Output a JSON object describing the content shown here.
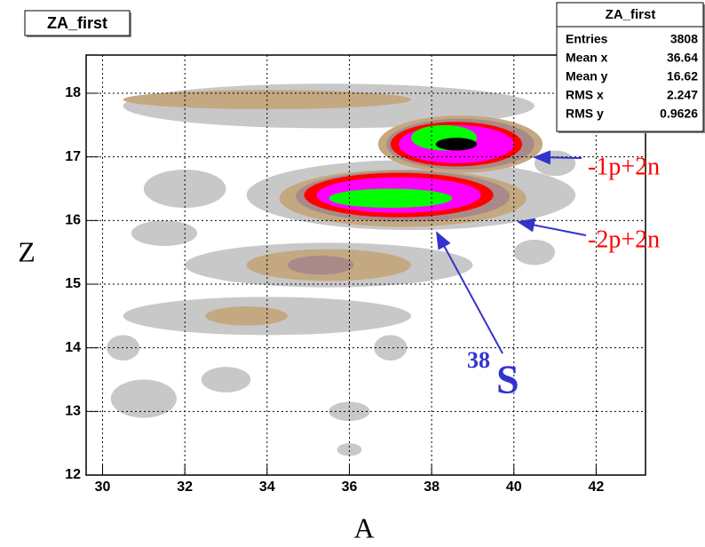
{
  "chart_data": {
    "type": "contour",
    "title": "ZA_first",
    "xlabel": "A",
    "ylabel": "Z",
    "xlim": [
      29.6,
      43.2
    ],
    "ylim": [
      12,
      18.6
    ],
    "xticks": [
      30,
      32,
      34,
      36,
      38,
      40,
      42
    ],
    "yticks": [
      12,
      13,
      14,
      15,
      16,
      17,
      18
    ],
    "grid": true,
    "level_colors": [
      "#c8c8c8",
      "#c4a882",
      "#a88a8a",
      "#ff0000",
      "#ff00ff",
      "#00ff00",
      "#000000"
    ],
    "blobs": [
      {
        "x": 35.5,
        "y": 17.8,
        "rx": 5,
        "ry": 0.35,
        "level": 0
      },
      {
        "x": 34,
        "y": 17.9,
        "rx": 3.5,
        "ry": 0.15,
        "level": 1
      },
      {
        "x": 32,
        "y": 16.5,
        "rx": 1,
        "ry": 0.3,
        "level": 0
      },
      {
        "x": 31.5,
        "y": 15.8,
        "rx": 0.8,
        "ry": 0.2,
        "level": 0
      },
      {
        "x": 35.5,
        "y": 15.3,
        "rx": 3.5,
        "ry": 0.35,
        "level": 0
      },
      {
        "x": 35.5,
        "y": 15.3,
        "rx": 2,
        "ry": 0.25,
        "level": 1
      },
      {
        "x": 35.3,
        "y": 15.3,
        "rx": 0.8,
        "ry": 0.15,
        "level": 2
      },
      {
        "x": 34,
        "y": 14.5,
        "rx": 3.5,
        "ry": 0.3,
        "level": 0
      },
      {
        "x": 33.5,
        "y": 14.5,
        "rx": 1,
        "ry": 0.15,
        "level": 1
      },
      {
        "x": 31,
        "y": 13.2,
        "rx": 0.8,
        "ry": 0.3,
        "level": 0
      },
      {
        "x": 33,
        "y": 13.5,
        "rx": 0.6,
        "ry": 0.2,
        "level": 0
      },
      {
        "x": 30.5,
        "y": 14,
        "rx": 0.4,
        "ry": 0.2,
        "level": 0
      },
      {
        "x": 36,
        "y": 13,
        "rx": 0.5,
        "ry": 0.15,
        "level": 0
      },
      {
        "x": 37,
        "y": 14,
        "rx": 0.4,
        "ry": 0.2,
        "level": 0
      },
      {
        "x": 40.5,
        "y": 15.5,
        "rx": 0.5,
        "ry": 0.2,
        "level": 0
      },
      {
        "x": 41,
        "y": 16.9,
        "rx": 0.5,
        "ry": 0.2,
        "level": 0
      },
      {
        "x": 36,
        "y": 12.4,
        "rx": 0.3,
        "ry": 0.1,
        "level": 0
      },
      {
        "x": 37.5,
        "y": 16.4,
        "rx": 4,
        "ry": 0.55,
        "level": 0
      },
      {
        "x": 37.3,
        "y": 16.35,
        "rx": 3,
        "ry": 0.45,
        "level": 1
      },
      {
        "x": 37.3,
        "y": 16.38,
        "rx": 2.6,
        "ry": 0.4,
        "level": 2
      },
      {
        "x": 37.2,
        "y": 16.4,
        "rx": 2.3,
        "ry": 0.35,
        "level": 3
      },
      {
        "x": 37.2,
        "y": 16.4,
        "rx": 2,
        "ry": 0.28,
        "level": 4
      },
      {
        "x": 37,
        "y": 16.35,
        "rx": 1.5,
        "ry": 0.15,
        "level": 5
      },
      {
        "x": 38.7,
        "y": 17.2,
        "rx": 2,
        "ry": 0.45,
        "level": 1
      },
      {
        "x": 38.7,
        "y": 17.2,
        "rx": 1.8,
        "ry": 0.4,
        "level": 2
      },
      {
        "x": 38.6,
        "y": 17.2,
        "rx": 1.6,
        "ry": 0.35,
        "level": 3
      },
      {
        "x": 38.6,
        "y": 17.2,
        "rx": 1.4,
        "ry": 0.3,
        "level": 4
      },
      {
        "x": 38.3,
        "y": 17.3,
        "rx": 0.8,
        "ry": 0.2,
        "level": 5
      },
      {
        "x": 38.6,
        "y": 17.2,
        "rx": 0.5,
        "ry": 0.1,
        "level": 6
      }
    ],
    "stats": {
      "title": "ZA_first",
      "rows": [
        [
          "Entries",
          3808
        ],
        [
          "Mean x",
          36.64
        ],
        [
          "Mean y",
          16.62
        ],
        [
          "RMS x",
          2.247
        ],
        [
          "RMS y",
          0.9626
        ]
      ]
    },
    "annotations": [
      {
        "text": "-1p+2n"
      },
      {
        "text": "-2p+2n"
      },
      {
        "superscript": "38",
        "text": "S"
      }
    ]
  }
}
